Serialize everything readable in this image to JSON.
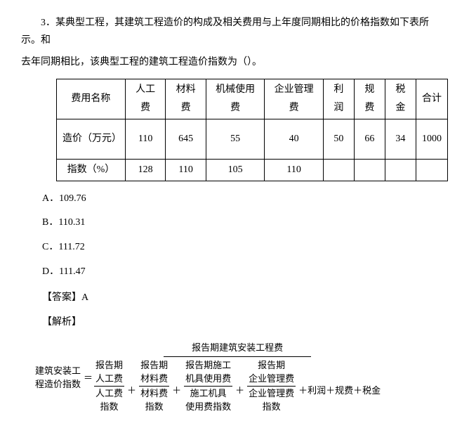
{
  "question": {
    "number": "3．",
    "line1": "某典型工程，其建筑工程造价的构成及相关费用与上年度同期相比的价格指数如下表所示。和",
    "line2": "去年同期相比，该典型工程的建筑工程造价指数为（）。"
  },
  "table": {
    "header": [
      "费用名称",
      "人工费",
      "材料费",
      "机械使用费",
      "企业管理费",
      "利润",
      "规费",
      "税金",
      "合计"
    ],
    "row1_label": "造价（万元）",
    "row1": [
      "110",
      "645",
      "55",
      "40",
      "50",
      "66",
      "34",
      "1000"
    ],
    "row2_label": "指数（%）",
    "row2": [
      "128",
      "110",
      "105",
      "110",
      "",
      "",
      "",
      ""
    ]
  },
  "options": {
    "a": "A．109.76",
    "b": "B．110.31",
    "c": "C．111.72",
    "d": "D．111.47"
  },
  "answer_label": "【答案】A",
  "analysis_label": "【解析】",
  "formula": {
    "left_l1": "建筑安装工",
    "left_l2": "程造价指数",
    "eq": "＝",
    "numerator": "报告期建筑安装工程费",
    "d": {
      "t1_top_l1": "报告期",
      "t1_top_l2": "人工费",
      "t1_bot_l1": "人工费",
      "t1_bot_l2": "指数",
      "t2_top_l1": "报告期",
      "t2_top_l2": "材料费",
      "t2_bot_l1": "材料费",
      "t2_bot_l2": "指数",
      "t3_top_l1": "报告期施工",
      "t3_top_l2": "机具使用费",
      "t3_bot_l1": "施工机具",
      "t3_bot_l2": "使用费指数",
      "t4_top_l1": "报告期",
      "t4_top_l2": "企业管理费",
      "t4_bot_l1": "企业管理费",
      "t4_bot_l2": "指数",
      "tail": "＋利润＋规费＋税金"
    },
    "plus": "＋"
  }
}
